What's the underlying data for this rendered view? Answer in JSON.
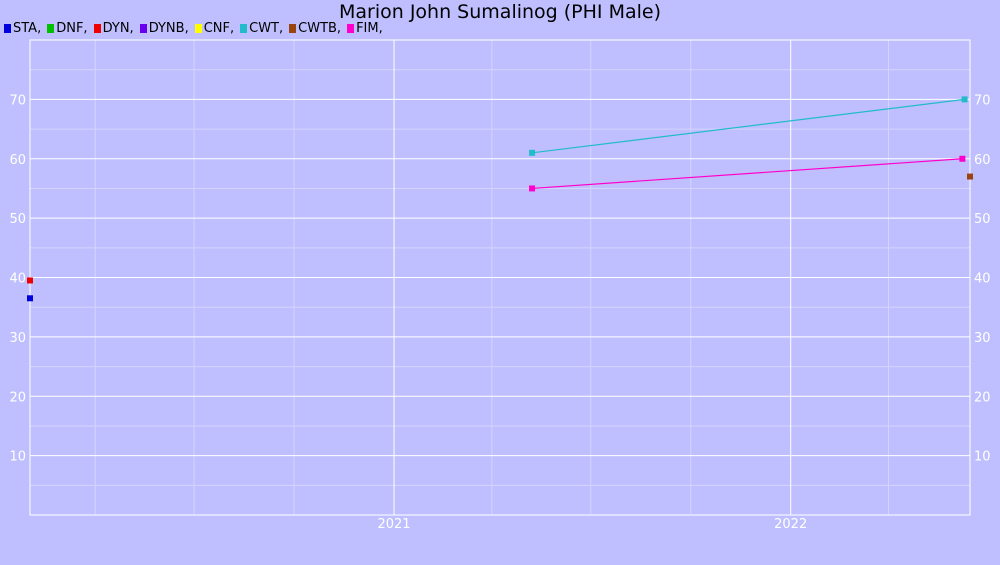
{
  "chart_data": {
    "type": "line",
    "title": "Marion John Sumalinog (PHI Male)",
    "xlabel": "",
    "ylabel": "",
    "xlim": [
      "2020-02-01",
      "2022-06-15"
    ],
    "ylim": [
      0,
      80
    ],
    "yticks": [
      10,
      20,
      30,
      40,
      50,
      60,
      70
    ],
    "xticks": [
      {
        "label": "2021",
        "date": "2021-01-01"
      },
      {
        "label": "2022",
        "date": "2022-01-01"
      }
    ],
    "grid": true,
    "legend_position": "top-left",
    "series": [
      {
        "name": "STA",
        "color": "#0000dd",
        "points": [
          {
            "x": "2020-02-01",
            "y": 36.5
          }
        ]
      },
      {
        "name": "DNF",
        "color": "#00c000",
        "points": []
      },
      {
        "name": "DYN",
        "color": "#ee0000",
        "points": [
          {
            "x": "2020-02-01",
            "y": 39.5
          }
        ]
      },
      {
        "name": "DYNB",
        "color": "#6600ee",
        "points": []
      },
      {
        "name": "CNF",
        "color": "#ffff00",
        "points": []
      },
      {
        "name": "CWT",
        "color": "#22bbcc",
        "points": [
          {
            "x": "2021-05-08",
            "y": 61
          },
          {
            "x": "2022-06-10",
            "y": 70
          }
        ]
      },
      {
        "name": "CWTB",
        "color": "#994411",
        "points": [
          {
            "x": "2022-06-15",
            "y": 57
          }
        ]
      },
      {
        "name": "FIM",
        "color": "#ff00cc",
        "points": [
          {
            "x": "2021-05-08",
            "y": 55
          },
          {
            "x": "2022-06-08",
            "y": 60
          }
        ]
      }
    ]
  }
}
